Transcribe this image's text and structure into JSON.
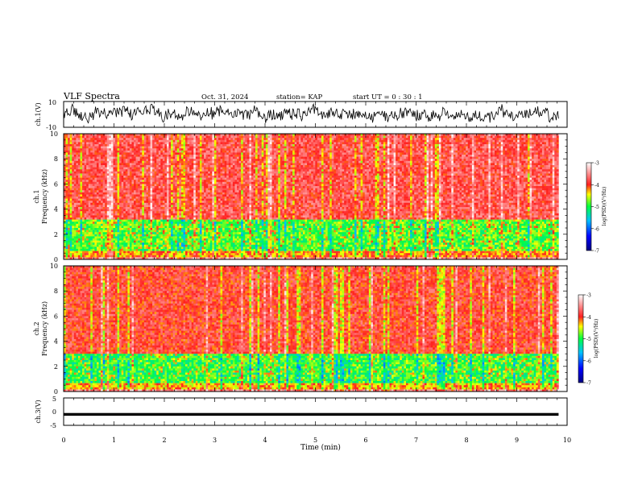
{
  "header": {
    "title": "VLF Spectra",
    "date": "Oct. 31, 2024",
    "station": "station= KAP",
    "start": "start  UT  =   0 : 30 : 1"
  },
  "chart_data": [
    {
      "type": "line",
      "panel": "ch1-waveform",
      "ylabel": "ch.1(V)",
      "ylim": [
        -10,
        10
      ],
      "yticks": [
        "10",
        "-10"
      ],
      "xlim": [
        0,
        10
      ],
      "series": [
        {
          "values_range": [
            -8,
            8
          ]
        }
      ]
    },
    {
      "type": "heatmap",
      "panel": "ch1-spectrogram",
      "ylabel": "ch.1\nFrequency (kHz)",
      "ylim": [
        0,
        10
      ],
      "yticks": [
        "0",
        "2",
        "4",
        "6",
        "8",
        "10"
      ],
      "xlim": [
        0,
        10
      ],
      "data_extent_min": 9.83,
      "bands": [
        {
          "from_khz": 0.0,
          "to_khz": 0.2,
          "level": -3.5
        },
        {
          "from_khz": 0.2,
          "to_khz": 0.6,
          "level": -4.2
        },
        {
          "from_khz": 0.6,
          "to_khz": 1.0,
          "level": -4.9
        },
        {
          "from_khz": 1.0,
          "to_khz": 3.2,
          "level": -4.9
        },
        {
          "from_khz": 3.2,
          "to_khz": 10.0,
          "level": -3.8
        }
      ],
      "colorbar": {
        "label": "log(PSD)(V²/Hz)",
        "range": [
          -7,
          -3
        ],
        "ticks": [
          "-3",
          "-4",
          "-5",
          "-6",
          "-7"
        ]
      }
    },
    {
      "type": "heatmap",
      "panel": "ch2-spectrogram",
      "ylabel": "ch.2\nFrequency (kHz)",
      "ylim": [
        0,
        10
      ],
      "yticks": [
        "0",
        "2",
        "4",
        "6",
        "8",
        "10"
      ],
      "xlim": [
        0,
        10
      ],
      "data_extent_min": 9.83,
      "bands": [
        {
          "from_khz": 0.0,
          "to_khz": 0.2,
          "level": -3.5
        },
        {
          "from_khz": 0.2,
          "to_khz": 0.7,
          "level": -4.3
        },
        {
          "from_khz": 0.7,
          "to_khz": 3.0,
          "level": -5.0
        },
        {
          "from_khz": 3.0,
          "to_khz": 10.0,
          "level": -3.9
        }
      ],
      "colorbar": {
        "label": "log(PSD)(V²/Hz)",
        "range": [
          -7,
          -3
        ],
        "ticks": [
          "-3",
          "-4",
          "-5",
          "-6",
          "-7"
        ]
      }
    },
    {
      "type": "line",
      "panel": "ch3-waveform",
      "ylabel": "ch.3(V)",
      "ylim": [
        -5,
        5
      ],
      "yticks": [
        "5",
        "0",
        "-5"
      ],
      "xlim": [
        0,
        10
      ],
      "series": [
        {
          "values_range": [
            -1.5,
            -0.5
          ]
        }
      ]
    }
  ],
  "xaxis": {
    "label": "Time  (min)",
    "ticks": [
      "0",
      "1",
      "2",
      "3",
      "4",
      "5",
      "6",
      "7",
      "8",
      "9",
      "10"
    ]
  },
  "colors": {
    "scale": [
      "#000080",
      "#0000ff",
      "#00c0ff",
      "#00ff40",
      "#ffff00",
      "#ff2020",
      "#ffffff"
    ]
  }
}
